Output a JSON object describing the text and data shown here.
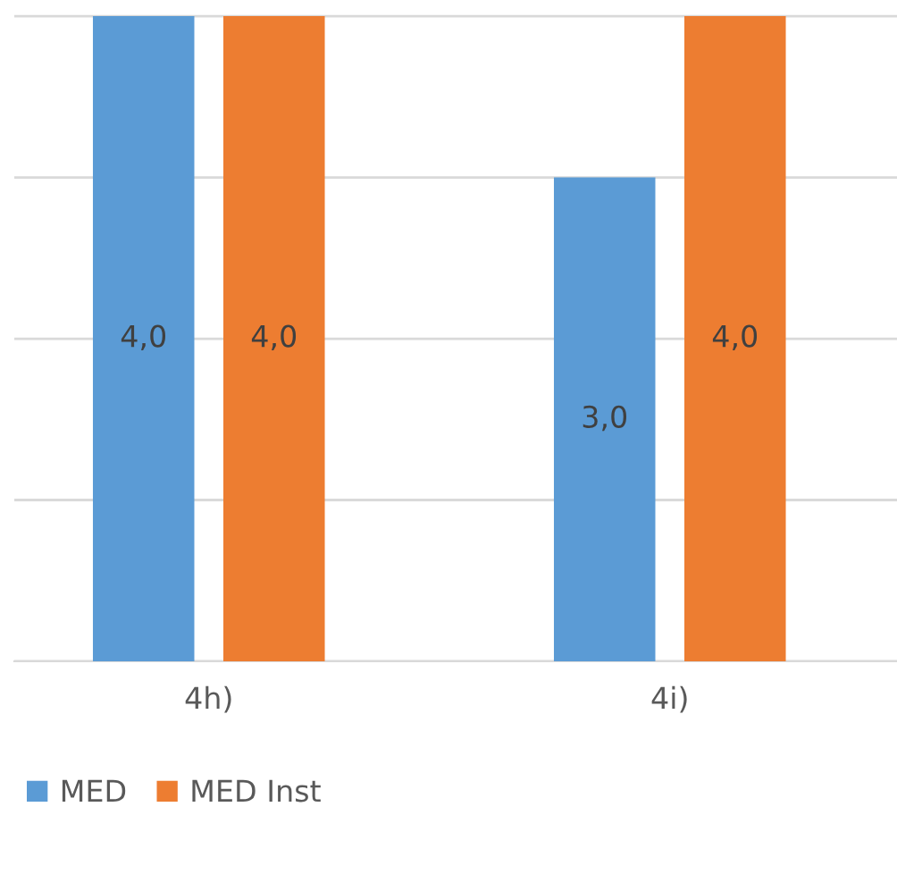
{
  "chart_data": {
    "type": "bar",
    "categories": [
      "4h)",
      "4i)"
    ],
    "series": [
      {
        "name": "MED",
        "color": "#5b9bd5",
        "values": [
          4.0,
          3.0
        ],
        "value_labels": [
          "4,0",
          "3,0"
        ]
      },
      {
        "name": "MED Inst",
        "color": "#ed7d31",
        "values": [
          4.0,
          4.0
        ],
        "value_labels": [
          "4,0",
          "4,0"
        ]
      }
    ],
    "yticks": [
      {
        "value": 0,
        "label": null
      },
      {
        "value": 1,
        "label": null
      },
      {
        "value": 2,
        "label": null
      },
      {
        "value": 3,
        "label": null
      },
      {
        "value": 4,
        "label": null
      }
    ],
    "grid": "y",
    "legend": "bottom",
    "tick_labels": "x"
  }
}
